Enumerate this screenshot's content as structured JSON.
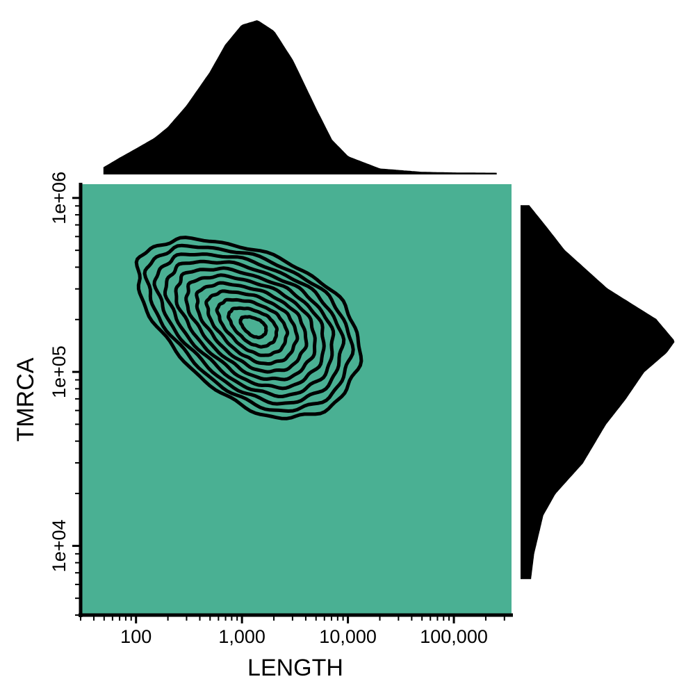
{
  "chart_data": {
    "type": "contour",
    "xlabel": "LENGTH",
    "ylabel": "TMRCA",
    "x_scale": "log10",
    "y_scale": "log10",
    "xlim": [
      30,
      350000
    ],
    "ylim": [
      4000,
      1200000
    ],
    "x_ticks": [
      {
        "value": 100,
        "label": "100"
      },
      {
        "value": 1000,
        "label": "1,000"
      },
      {
        "value": 10000,
        "label": "10,000"
      },
      {
        "value": 100000,
        "label": "100,000"
      }
    ],
    "y_ticks": [
      {
        "value": 10000,
        "label": "1e+04"
      },
      {
        "value": 100000,
        "label": "1e+05"
      },
      {
        "value": 1000000,
        "label": "1e+06"
      }
    ],
    "panel_fill": "#4ab093",
    "line_color": "#000000",
    "contour_center": {
      "x": 1400,
      "y": 190000
    },
    "contour_levels": 11,
    "marginal_x_density": {
      "x": [
        50,
        70,
        100,
        150,
        200,
        300,
        500,
        700,
        1000,
        1400,
        2000,
        3000,
        5000,
        7000,
        10000,
        20000,
        50000,
        100000,
        250000
      ],
      "density": [
        0.04,
        0.1,
        0.16,
        0.23,
        0.3,
        0.44,
        0.66,
        0.84,
        0.97,
        1.0,
        0.93,
        0.74,
        0.42,
        0.22,
        0.11,
        0.03,
        0.008,
        0.004,
        0.002
      ]
    },
    "marginal_y_density": {
      "y": [
        6500,
        9000,
        15000,
        20000,
        30000,
        50000,
        70000,
        100000,
        130000,
        150000,
        200000,
        300000,
        500000,
        700000,
        900000
      ],
      "density": [
        0.06,
        0.08,
        0.14,
        0.22,
        0.4,
        0.55,
        0.68,
        0.8,
        0.95,
        1.0,
        0.88,
        0.56,
        0.28,
        0.15,
        0.05
      ]
    }
  }
}
